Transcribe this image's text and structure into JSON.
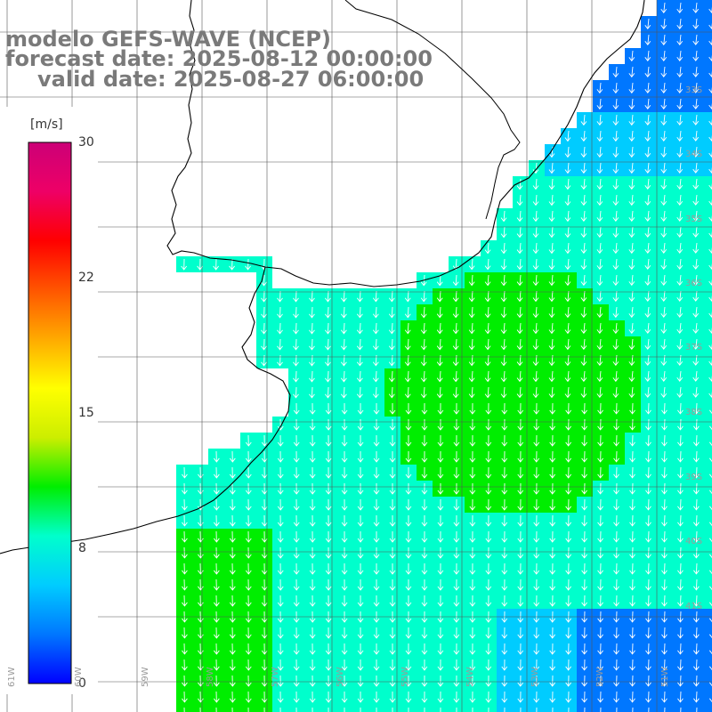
{
  "title": {
    "line1": "modelo GEFS-WAVE (NCEP)",
    "line2": "forecast date: 2025-08-12 00:00:00",
    "line3": "valid date: 2025-08-27 06:00:00"
  },
  "colorbar": {
    "unit": "[m/s]",
    "ticks": [
      "30",
      "22",
      "15",
      "8",
      "0"
    ],
    "range": [
      0,
      30
    ],
    "stops": [
      "#0000ff",
      "#0077ff",
      "#00ccff",
      "#00ffcc",
      "#00ee00",
      "#ccee00",
      "#ffff00",
      "#ffaa00",
      "#ff5500",
      "#ff0000",
      "#ee0066",
      "#cc0077"
    ]
  },
  "grid": {
    "lat_labels": [
      "33S",
      "34S",
      "35S",
      "36S",
      "37S",
      "38S",
      "39S",
      "40S",
      "41S"
    ],
    "lon_labels": [
      "61W",
      "60W",
      "59W",
      "58W",
      "57W",
      "56W",
      "55W",
      "54W",
      "53W",
      "52W",
      "51W"
    ]
  },
  "colors": {
    "land": "#ffffff",
    "coast": "#000000",
    "gridline": "#555555",
    "arrow": "#ffffff",
    "title_text": "#7a7a7a"
  }
}
